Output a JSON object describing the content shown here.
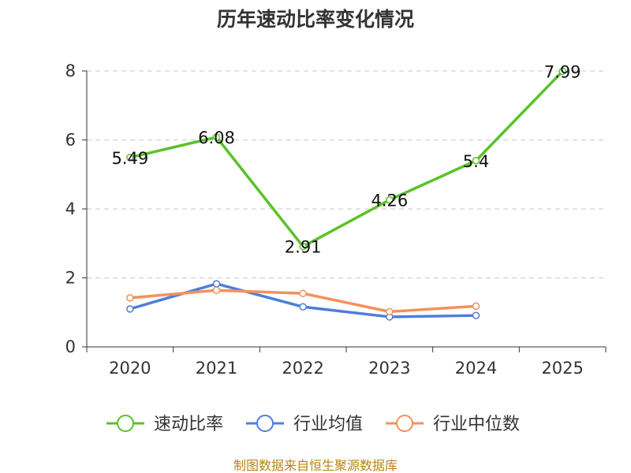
{
  "chart_data": {
    "type": "line",
    "title": "历年速动比率变化情况",
    "categories": [
      "2020",
      "2021",
      "2022",
      "2023",
      "2024",
      "2025"
    ],
    "ylim": [
      0,
      8
    ],
    "yticks": [
      0,
      2,
      4,
      6,
      8
    ],
    "grid": true,
    "legend_position": "bottom",
    "series": [
      {
        "name": "速动比率",
        "color": "#5ac229",
        "values": [
          5.49,
          6.08,
          2.91,
          4.26,
          5.4,
          7.99
        ],
        "labels": [
          "5.49",
          "6.08",
          "2.91",
          "4.26",
          "5.4",
          "7.99"
        ]
      },
      {
        "name": "行业均值",
        "color": "#4d7fd9",
        "values": [
          1.1,
          1.83,
          1.16,
          0.87,
          0.91,
          null
        ]
      },
      {
        "name": "行业中位数",
        "color": "#f5905c",
        "values": [
          1.42,
          1.64,
          1.55,
          1.02,
          1.18,
          null
        ]
      }
    ],
    "source": "制图数据来自恒生聚源数据库"
  }
}
